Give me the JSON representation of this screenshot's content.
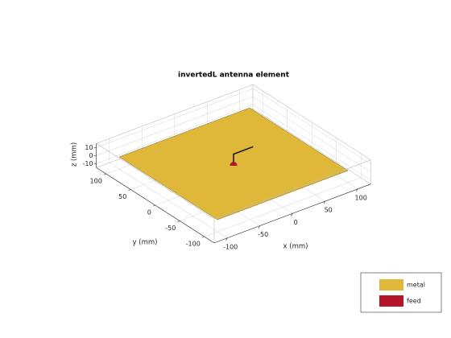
{
  "title": "invertedL antenna element",
  "axes": {
    "x": {
      "label": "x (mm)",
      "ticks": [
        -100,
        -50,
        0,
        50,
        100
      ]
    },
    "y": {
      "label": "y (mm)",
      "ticks": [
        -100,
        -50,
        0,
        50,
        100
      ]
    },
    "z": {
      "label": "z (mm)",
      "ticks": [
        -10,
        0,
        10
      ]
    }
  },
  "legend": [
    {
      "label": "metal",
      "color": "#dfb83a"
    },
    {
      "label": "feed",
      "color": "#b5152b"
    }
  ]
}
